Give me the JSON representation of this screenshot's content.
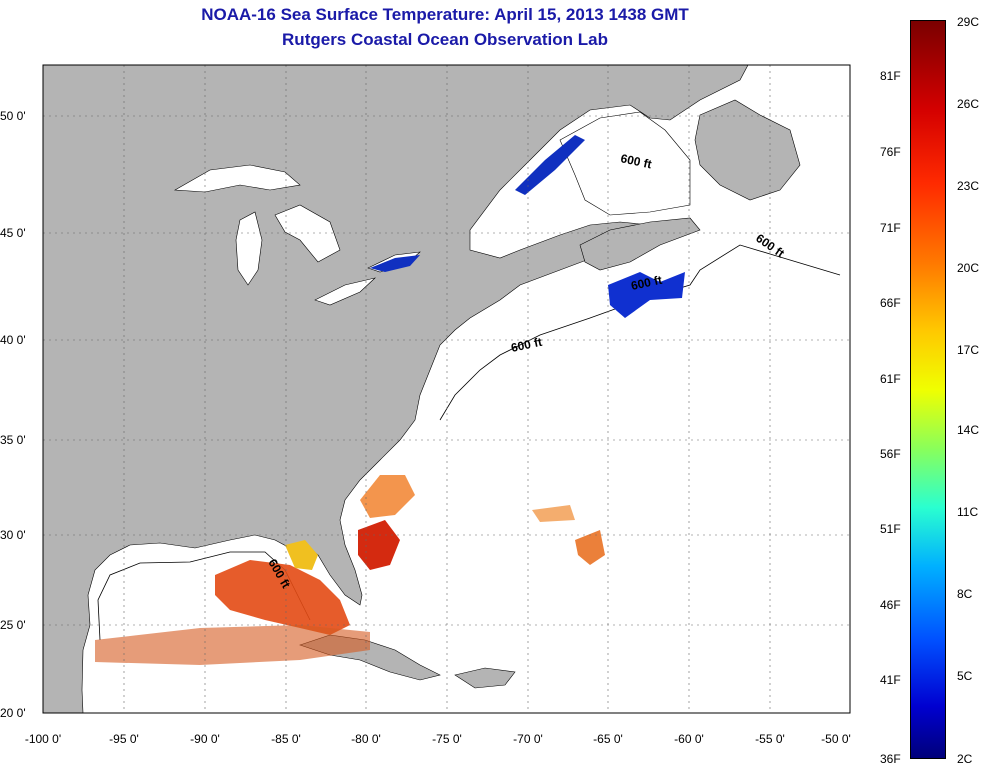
{
  "title": "NOAA-16 Sea Surface Temperature:  April 15, 2013 1438 GMT",
  "subtitle": "Rutgers Coastal Ocean Observation Lab",
  "lat_labels": [
    "50 0'",
    "45 0'",
    "40 0'",
    "35 0'",
    "30 0'",
    "25 0'",
    "20 0'"
  ],
  "lon_labels": [
    "-100 0'",
    "-95 0'",
    "-90 0'",
    "-85 0'",
    "-80 0'",
    "-75 0'",
    "-70 0'",
    "-65 0'",
    "-60 0'",
    "-55 0'",
    "-50 0'"
  ],
  "isobath_label": "600 ft",
  "colorbar": {
    "celsius": [
      "29C",
      "26C",
      "23C",
      "20C",
      "17C",
      "14C",
      "11C",
      "8C",
      "5C",
      "2C"
    ],
    "fahrenheit": [
      "81F",
      "76F",
      "71F",
      "66F",
      "61F",
      "56F",
      "51F",
      "46F",
      "41F",
      "36F"
    ]
  },
  "colors": {
    "land": "#b4b4b4",
    "title": "#1a1aa8",
    "cold": "#00007a",
    "warm": "#7a0000"
  }
}
